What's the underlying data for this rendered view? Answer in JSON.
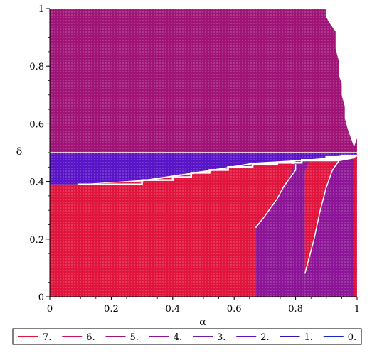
{
  "chart_data": {
    "type": "heatmap",
    "title": "",
    "xlabel": "α",
    "ylabel": "δ",
    "xlim": [
      0,
      1
    ],
    "ylim": [
      0,
      1
    ],
    "x_ticks": [
      "0",
      "0.2",
      "0.4",
      "0.6",
      "0.8",
      "1"
    ],
    "y_ticks": [
      "0",
      "0.2",
      "0.4",
      "0.6",
      "0.8",
      "1"
    ],
    "legend_position": "bottom",
    "legend": [
      {
        "label": "7.",
        "color": "#e0143c"
      },
      {
        "label": "6.",
        "color": "#c8145a"
      },
      {
        "label": "5.",
        "color": "#a01478"
      },
      {
        "label": "4.",
        "color": "#8c1496"
      },
      {
        "label": "3.",
        "color": "#6e1ea6"
      },
      {
        "label": "2.",
        "color": "#5a14c8"
      },
      {
        "label": "1.",
        "color": "#3214b4"
      },
      {
        "label": "0.",
        "color": "#1428c8"
      }
    ],
    "regions": [
      {
        "level": "5.",
        "color": "#a01478",
        "polygon": [
          [
            0,
            0.5
          ],
          [
            0,
            1
          ],
          [
            0.9,
            1
          ],
          [
            0.9,
            0.97
          ],
          [
            0.91,
            0.95
          ],
          [
            0.93,
            0.92
          ],
          [
            0.93,
            0.86
          ],
          [
            0.94,
            0.82
          ],
          [
            0.94,
            0.77
          ],
          [
            0.95,
            0.74
          ],
          [
            0.95,
            0.7
          ],
          [
            0.96,
            0.66
          ],
          [
            0.96,
            0.62
          ],
          [
            0.97,
            0.58
          ],
          [
            0.98,
            0.55
          ],
          [
            0.99,
            0.52
          ],
          [
            1,
            0.55
          ],
          [
            1,
            0.5
          ]
        ]
      },
      {
        "level": "2.",
        "color": "#5a14c8",
        "polygon": [
          [
            0,
            0.39
          ],
          [
            0.09,
            0.39
          ],
          [
            0.3,
            0.405
          ],
          [
            0.46,
            0.43
          ],
          [
            0.58,
            0.45
          ],
          [
            0.66,
            0.465
          ],
          [
            0.74,
            0.47
          ],
          [
            0.82,
            0.475
          ],
          [
            0.88,
            0.48
          ],
          [
            0.95,
            0.49
          ],
          [
            1,
            0.49
          ],
          [
            1,
            0.5
          ],
          [
            0,
            0.5
          ]
        ]
      },
      {
        "level": "7.",
        "color": "#e0143c",
        "polygon": [
          [
            0,
            0
          ],
          [
            0.67,
            0
          ],
          [
            0.67,
            0.24
          ],
          [
            0.7,
            0.28
          ],
          [
            0.74,
            0.34
          ],
          [
            0.77,
            0.39
          ],
          [
            0.8,
            0.44
          ],
          [
            0.8,
            0.46
          ],
          [
            0.76,
            0.465
          ],
          [
            0.66,
            0.46
          ],
          [
            0.58,
            0.445
          ],
          [
            0.46,
            0.425
          ],
          [
            0.3,
            0.4
          ],
          [
            0.09,
            0.39
          ],
          [
            0,
            0.39
          ]
        ]
      },
      {
        "level": "4.",
        "color": "#8c1496",
        "polygon": [
          [
            0.67,
            0
          ],
          [
            0.83,
            0
          ],
          [
            0.83,
            0.43
          ],
          [
            0.84,
            0.46
          ],
          [
            0.85,
            0.47
          ],
          [
            0.8,
            0.47
          ],
          [
            0.77,
            0.39
          ],
          [
            0.74,
            0.34
          ],
          [
            0.7,
            0.28
          ],
          [
            0.67,
            0.24
          ]
        ]
      },
      {
        "level": "7.",
        "color": "#e0143c",
        "polygon": [
          [
            0.83,
            0.08
          ],
          [
            0.84,
            0.1
          ],
          [
            0.86,
            0.2
          ],
          [
            0.88,
            0.3
          ],
          [
            0.91,
            0.42
          ],
          [
            0.93,
            0.46
          ],
          [
            0.94,
            0.47
          ],
          [
            0.85,
            0.47
          ],
          [
            0.84,
            0.46
          ],
          [
            0.83,
            0.43
          ]
        ]
      },
      {
        "level": "4.",
        "color": "#8c1496",
        "polygon": [
          [
            0.83,
            0
          ],
          [
            0.99,
            0
          ],
          [
            0.99,
            0.48
          ],
          [
            0.94,
            0.47
          ],
          [
            0.93,
            0.46
          ],
          [
            0.91,
            0.42
          ],
          [
            0.88,
            0.3
          ],
          [
            0.86,
            0.2
          ],
          [
            0.84,
            0.1
          ],
          [
            0.83,
            0.08
          ]
        ]
      },
      {
        "level": "7.",
        "color": "#e0143c",
        "polygon": [
          [
            0.99,
            0
          ],
          [
            1,
            0
          ],
          [
            1,
            0.49
          ],
          [
            0.99,
            0.48
          ]
        ]
      }
    ],
    "boundaries": [
      {
        "color": "#ffffff",
        "points": [
          [
            0.09,
            0.39
          ],
          [
            0.3,
            0.39
          ],
          [
            0.3,
            0.405
          ],
          [
            0.4,
            0.405
          ],
          [
            0.4,
            0.415
          ],
          [
            0.46,
            0.415
          ],
          [
            0.46,
            0.43
          ],
          [
            0.52,
            0.43
          ],
          [
            0.52,
            0.44
          ],
          [
            0.58,
            0.44
          ],
          [
            0.58,
            0.45
          ],
          [
            0.66,
            0.45
          ],
          [
            0.66,
            0.46
          ],
          [
            0.74,
            0.46
          ],
          [
            0.74,
            0.465
          ],
          [
            0.82,
            0.465
          ],
          [
            0.82,
            0.475
          ],
          [
            0.9,
            0.475
          ],
          [
            0.9,
            0.485
          ],
          [
            0.95,
            0.485
          ],
          [
            0.95,
            0.49
          ],
          [
            1,
            0.49
          ]
        ]
      },
      {
        "color": "#ffffff",
        "points": [
          [
            0.67,
            0.24
          ],
          [
            0.7,
            0.28
          ],
          [
            0.72,
            0.31
          ],
          [
            0.74,
            0.34
          ],
          [
            0.76,
            0.38
          ],
          [
            0.78,
            0.41
          ],
          [
            0.8,
            0.44
          ],
          [
            0.8,
            0.46
          ]
        ]
      },
      {
        "color": "#ffffff",
        "points": [
          [
            0.83,
            0.08
          ],
          [
            0.84,
            0.12
          ],
          [
            0.86,
            0.2
          ],
          [
            0.88,
            0.3
          ],
          [
            0.9,
            0.38
          ],
          [
            0.92,
            0.44
          ],
          [
            0.94,
            0.47
          ]
        ]
      },
      {
        "color": "#ffffff",
        "points": [
          [
            0,
            0.5
          ],
          [
            1,
            0.5
          ]
        ]
      }
    ]
  }
}
